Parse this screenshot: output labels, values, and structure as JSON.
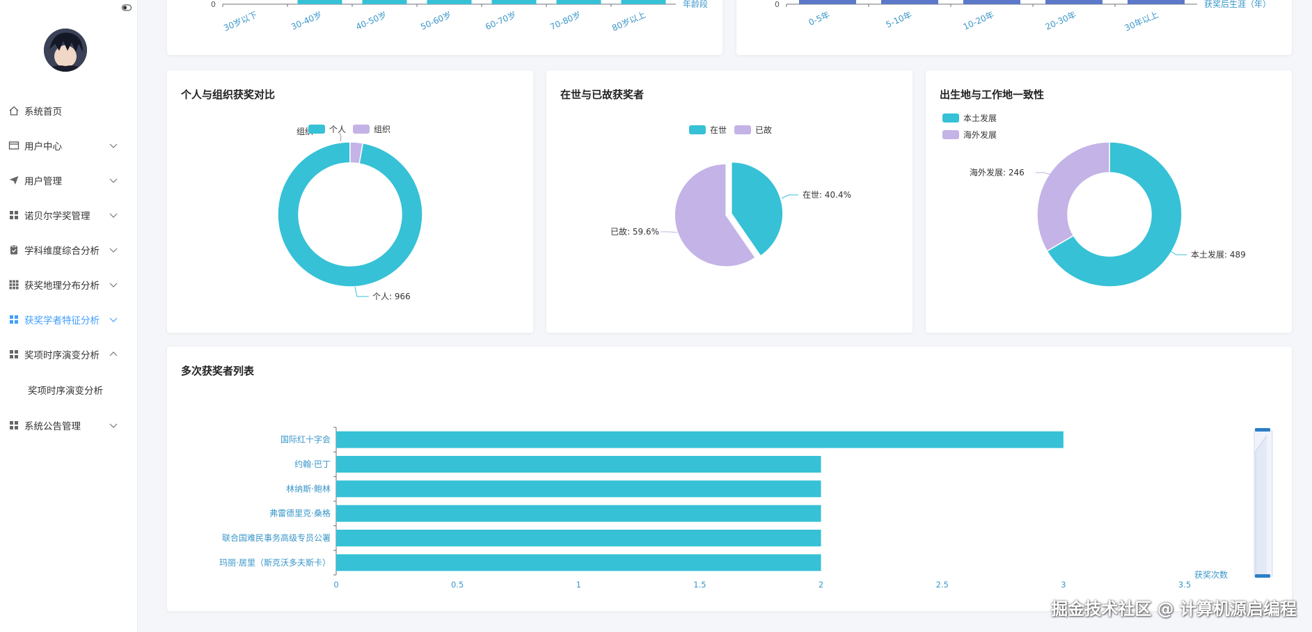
{
  "sidebar": {
    "items": [
      {
        "label": "系统首页",
        "icon": "home-icon",
        "expand": "none"
      },
      {
        "label": "用户中心",
        "icon": "window-icon",
        "expand": "down"
      },
      {
        "label": "用户管理",
        "icon": "send-icon",
        "expand": "down"
      },
      {
        "label": "诺贝尔学奖管理",
        "icon": "grid-icon",
        "expand": "down"
      },
      {
        "label": "学科维度综合分析",
        "icon": "clipboard-icon",
        "expand": "down"
      },
      {
        "label": "获奖地理分布分析",
        "icon": "grid9-icon",
        "expand": "down"
      },
      {
        "label": "获奖学者特征分析",
        "icon": "grid-icon",
        "expand": "down",
        "active": true
      },
      {
        "label": "奖项时序演变分析",
        "icon": "grid-icon",
        "expand": "up"
      },
      {
        "label": "奖项时序演变分析",
        "sub": true
      },
      {
        "label": "系统公告管理",
        "icon": "grid-icon",
        "expand": "down"
      }
    ],
    "accent": "#409eff"
  },
  "age_chart": {
    "ytick": "0",
    "categories": [
      "30岁以下",
      "30-40岁",
      "40-50岁",
      "50-60岁",
      "60-70岁",
      "70-80岁",
      "80岁以上"
    ],
    "xlabel": "年龄段",
    "color": "#36c1d6"
  },
  "career_chart": {
    "ytick": "0",
    "categories": [
      "0-5年",
      "5-10年",
      "10-20年",
      "20-30年",
      "30年以上"
    ],
    "xlabel": "获奖后生涯（年）",
    "color": "#5b78c9"
  },
  "cards": {
    "person_org": {
      "title": "个人与组织获奖对比",
      "legend": [
        "个人",
        "组织"
      ],
      "label_person": "个人: 966",
      "label_org": "组织"
    },
    "alive_dead": {
      "title": "在世与已故获奖者",
      "legend": [
        "在世",
        "已故"
      ],
      "label_alive": "在世: 40.4%",
      "label_dead": "已故: 59.6%"
    },
    "birth_work": {
      "title": "出生地与工作地一致性",
      "legend": [
        "本土发展",
        "海外发展"
      ],
      "label_local": "本土发展: 489",
      "label_overseas": "海外发展: 246"
    },
    "multi": {
      "title": "多次获奖者列表"
    }
  },
  "chart_data": [
    {
      "type": "pie",
      "title": "个人与组织获奖对比",
      "donut": true,
      "slices": [
        {
          "name": "个人",
          "value": 966
        },
        {
          "name": "组织",
          "value": 28
        }
      ],
      "legend": "top-center"
    },
    {
      "type": "pie",
      "title": "在世与已故获奖者",
      "slices": [
        {
          "name": "在世",
          "value": 40.4
        },
        {
          "name": "已故",
          "value": 59.6
        }
      ],
      "legend": "top-center"
    },
    {
      "type": "pie",
      "title": "出生地与工作地一致性",
      "donut": true,
      "slices": [
        {
          "name": "本土发展",
          "value": 489
        },
        {
          "name": "海外发展",
          "value": 246
        }
      ],
      "legend": "top-left"
    },
    {
      "type": "bar",
      "orientation": "horizontal",
      "title": "多次获奖者列表",
      "categories": [
        "国际红十字会",
        "约翰·巴丁",
        "林纳斯·鲍林",
        "弗雷德里克·桑格",
        "联合国难民事务高级专员公署",
        "玛丽·居里（斯克沃多夫斯卡）"
      ],
      "values": [
        3,
        2,
        2,
        2,
        2,
        2
      ],
      "xticks": [
        "0",
        "0.5",
        "1",
        "1.5",
        "2",
        "2.5",
        "3",
        "3.5"
      ],
      "xlim": [
        0,
        3.5
      ],
      "xlabel": "获奖次数",
      "color": "#36c1d6"
    }
  ],
  "colors": {
    "teal": "#36c1d6",
    "lavender": "#c4b3e6",
    "blue": "#5b78c9"
  },
  "watermark": "掘金技术社区 @ 计算机源启编程"
}
